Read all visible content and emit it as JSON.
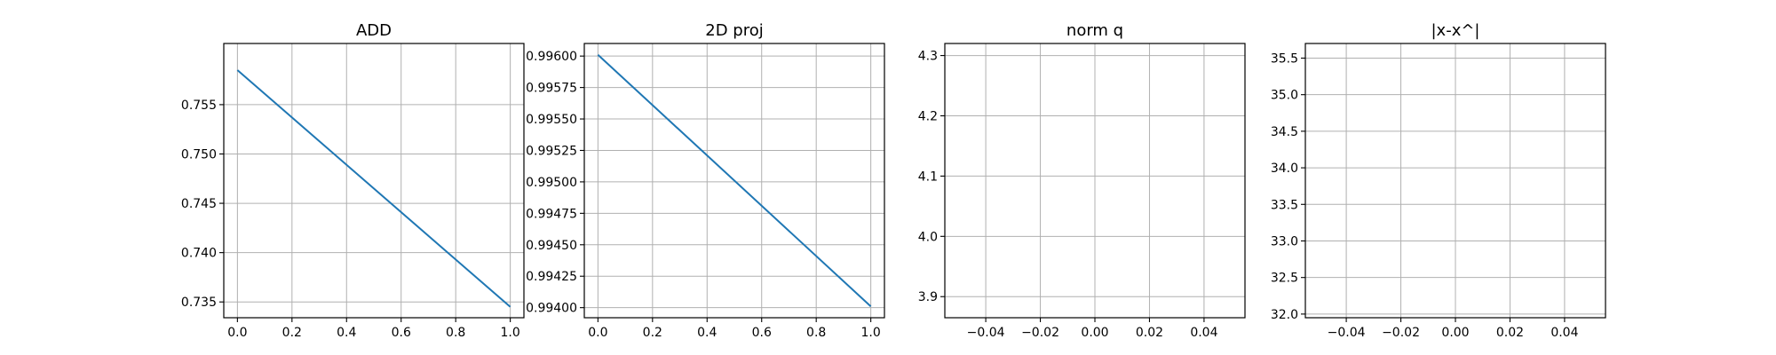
{
  "chart_data": [
    {
      "type": "line",
      "title": "ADD",
      "xlim": [
        -0.05,
        1.05
      ],
      "ylim": [
        0.7334,
        0.7612
      ],
      "xticks": [
        0.0,
        0.2,
        0.4,
        0.6,
        0.8,
        1.0
      ],
      "xtick_labels": [
        "0.0",
        "0.2",
        "0.4",
        "0.6",
        "0.8",
        "1.0"
      ],
      "yticks": [
        0.735,
        0.74,
        0.745,
        0.75,
        0.755
      ],
      "ytick_labels": [
        "0.735",
        "0.740",
        "0.745",
        "0.750",
        "0.755"
      ],
      "grid": true,
      "series": [
        {
          "x": [
            0.0,
            1.0
          ],
          "y": [
            0.7585,
            0.7345
          ],
          "color": "#1f77b4"
        }
      ]
    },
    {
      "type": "line",
      "title": "2D proj",
      "xlim": [
        -0.05,
        1.05
      ],
      "ylim": [
        0.99392,
        0.9961
      ],
      "xticks": [
        0.0,
        0.2,
        0.4,
        0.6,
        0.8,
        1.0
      ],
      "xtick_labels": [
        "0.0",
        "0.2",
        "0.4",
        "0.6",
        "0.8",
        "1.0"
      ],
      "yticks": [
        0.994,
        0.99425,
        0.9945,
        0.99475,
        0.995,
        0.99525,
        0.9955,
        0.99575,
        0.996
      ],
      "ytick_labels": [
        "0.99400",
        "0.99425",
        "0.99450",
        "0.99475",
        "0.99500",
        "0.99525",
        "0.99550",
        "0.99575",
        "0.99600"
      ],
      "grid": true,
      "series": [
        {
          "x": [
            0.0,
            1.0
          ],
          "y": [
            0.99601,
            0.99401
          ],
          "color": "#1f77b4"
        }
      ]
    },
    {
      "type": "line",
      "title": "norm q",
      "xlim": [
        -0.055,
        0.055
      ],
      "ylim": [
        3.865,
        4.32
      ],
      "xticks": [
        -0.04,
        -0.02,
        0.0,
        0.02,
        0.04
      ],
      "xtick_labels": [
        "−0.04",
        "−0.02",
        "0.00",
        "0.02",
        "0.04"
      ],
      "yticks": [
        3.9,
        4.0,
        4.1,
        4.2,
        4.3
      ],
      "ytick_labels": [
        "3.9",
        "4.0",
        "4.1",
        "4.2",
        "4.3"
      ],
      "grid": true,
      "series": []
    },
    {
      "type": "line",
      "title": "|x-x^|",
      "xlim": [
        -0.055,
        0.055
      ],
      "ylim": [
        31.95,
        35.7
      ],
      "xticks": [
        -0.04,
        -0.02,
        0.0,
        0.02,
        0.04
      ],
      "xtick_labels": [
        "−0.04",
        "−0.02",
        "0.00",
        "0.02",
        "0.04"
      ],
      "yticks": [
        32.0,
        32.5,
        33.0,
        33.5,
        34.0,
        34.5,
        35.0,
        35.5
      ],
      "ytick_labels": [
        "32.0",
        "32.5",
        "33.0",
        "33.5",
        "34.0",
        "34.5",
        "35.0",
        "35.5"
      ],
      "grid": true,
      "series": []
    }
  ]
}
